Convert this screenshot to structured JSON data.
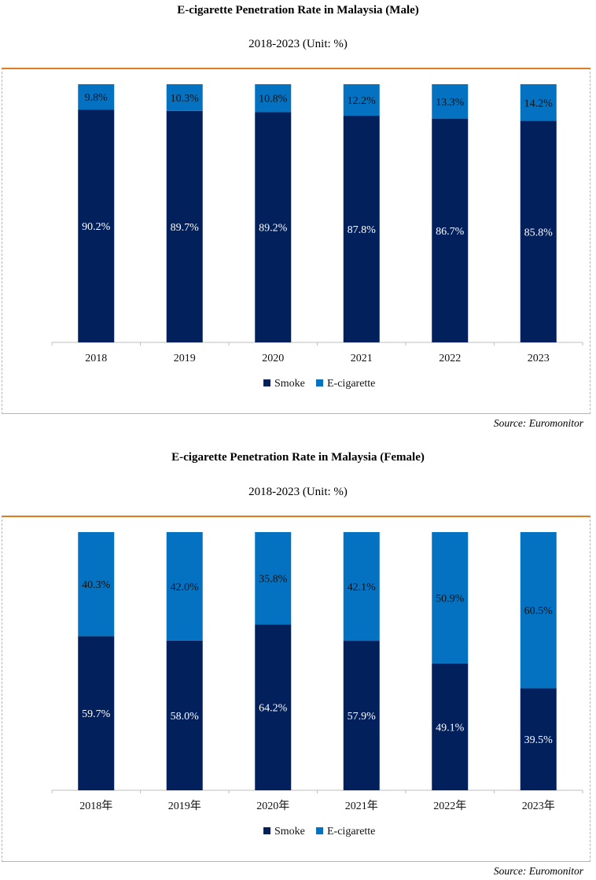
{
  "colors": {
    "smoke": "#02205C",
    "ecig": "#0472C0",
    "frame": "#E07B22",
    "axis": "#BFBFBF"
  },
  "chart_data": [
    {
      "type": "bar",
      "stacked": true,
      "title": "E-cigarette Penetration Rate in Malaysia (Male)",
      "subtitle": "2018-2023 (Unit: %)",
      "categories": [
        "2018",
        "2019",
        "2020",
        "2021",
        "2022",
        "2023"
      ],
      "series": [
        {
          "name": "Smoke",
          "values": [
            90.2,
            89.7,
            89.2,
            87.8,
            86.7,
            85.8
          ],
          "labels": [
            "90.2%",
            "89.7%",
            "89.2%",
            "87.8%",
            "86.7%",
            "85.8%"
          ]
        },
        {
          "name": "E-cigarette",
          "values": [
            9.8,
            10.3,
            10.8,
            12.2,
            13.3,
            14.2
          ],
          "labels": [
            "9.8%",
            "10.3%",
            "10.8%",
            "12.2%",
            "13.3%",
            "14.2%"
          ]
        }
      ],
      "ylim": [
        0,
        100
      ],
      "legend": [
        "Smoke",
        "E-cigarette"
      ],
      "legend_position": "bottom",
      "source": "Source: Euromonitor"
    },
    {
      "type": "bar",
      "stacked": true,
      "title": "E-cigarette Penetration Rate in Malaysia (Female)",
      "subtitle": "2018-2023 (Unit: %)",
      "categories": [
        "2018年",
        "2019年",
        "2020年",
        "2021年",
        "2022年",
        "2023年"
      ],
      "series": [
        {
          "name": "Smoke",
          "values": [
            59.7,
            58.0,
            64.2,
            57.9,
            49.1,
            39.5
          ],
          "labels": [
            "59.7%",
            "58.0%",
            "64.2%",
            "57.9%",
            "49.1%",
            "39.5%"
          ]
        },
        {
          "name": "E-cigarette",
          "values": [
            40.3,
            42.0,
            35.8,
            42.1,
            50.9,
            60.5
          ],
          "labels": [
            "40.3%",
            "42.0%",
            "35.8%",
            "42.1%",
            "50.9%",
            "60.5%"
          ]
        }
      ],
      "ylim": [
        0,
        100
      ],
      "legend": [
        "Smoke",
        "E-cigarette"
      ],
      "legend_position": "bottom",
      "source": "Source: Euromonitor"
    }
  ]
}
